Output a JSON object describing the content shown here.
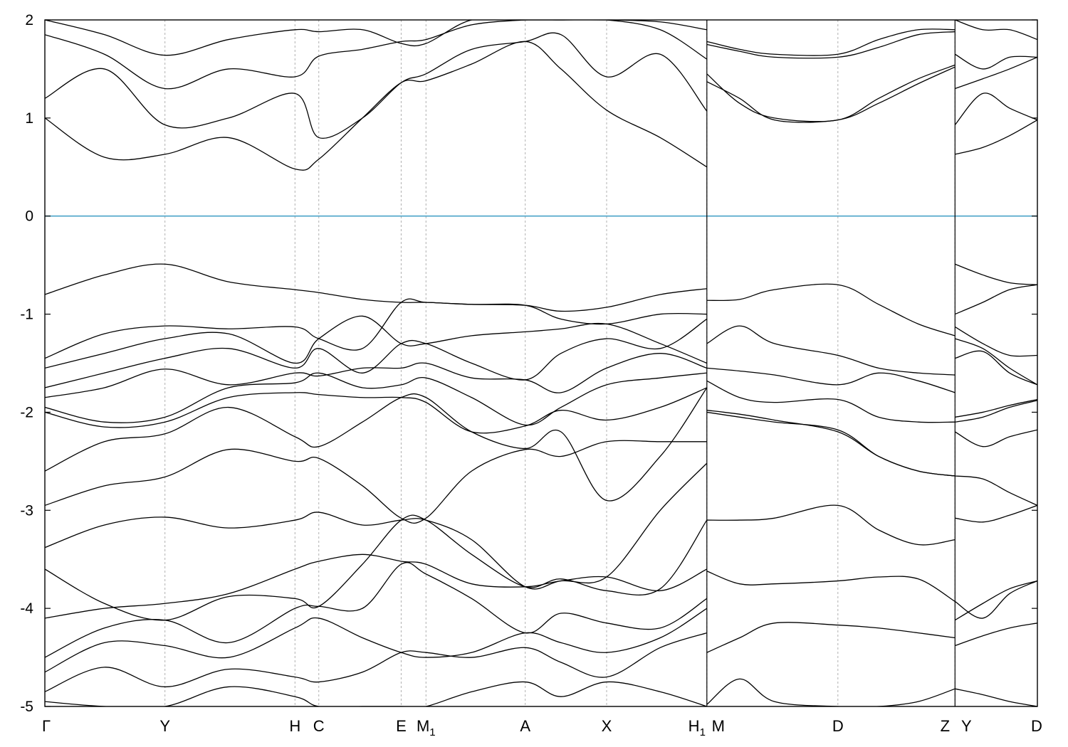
{
  "chart_data": {
    "type": "line",
    "title": "",
    "xlabel": "",
    "ylabel": "",
    "ylim": [
      -5,
      2
    ],
    "grid": "vertical dashed lines at high-symmetry points",
    "line_color": "#000000",
    "reference_line": {
      "y": 0,
      "color": "#4aa3c8"
    },
    "yticks": [
      {
        "value": 2,
        "label": "2"
      },
      {
        "value": 1,
        "label": "1"
      },
      {
        "value": 0,
        "label": "0"
      },
      {
        "value": -1,
        "label": "-1"
      },
      {
        "value": -2,
        "label": "-2"
      },
      {
        "value": -3,
        "label": "-3"
      },
      {
        "value": -4,
        "label": "-4"
      },
      {
        "value": -5,
        "label": "-5"
      }
    ],
    "kpoints": [
      {
        "id": "G",
        "label": "Γ",
        "sub": "",
        "x": 0
      },
      {
        "id": "Y",
        "label": "Y",
        "sub": "",
        "x": 1.21
      },
      {
        "id": "H",
        "label": "H",
        "sub": "",
        "x": 2.52
      },
      {
        "id": "C",
        "label": "C",
        "sub": "",
        "x": 2.76
      },
      {
        "id": "E",
        "label": "E",
        "sub": "",
        "x": 3.59
      },
      {
        "id": "M1",
        "label": "M",
        "sub": "1",
        "x": 3.84
      },
      {
        "id": "A",
        "label": "A",
        "sub": "",
        "x": 4.84
      },
      {
        "id": "X",
        "label": "X",
        "sub": "",
        "x": 5.66
      },
      {
        "id": "H1",
        "label": "H",
        "sub": "1",
        "x": 6.67
      },
      {
        "id": "D",
        "label": "D",
        "sub": "",
        "x": 7.99
      },
      {
        "id": "Z",
        "label": "Z",
        "sub": "",
        "x": 9.17
      },
      {
        "id": "D2",
        "label": "D",
        "sub": "",
        "x": 10.0
      }
    ],
    "breaks": [
      {
        "x": 6.67,
        "left": "H1",
        "right": "M"
      },
      {
        "x": 9.17,
        "left": "Z",
        "right": "Y"
      }
    ],
    "segments": [
      {
        "name": "Γ-Y-H-C-E-M1-A-X-H1",
        "x": [
          0,
          0.6,
          1.21,
          1.85,
          2.52,
          2.76,
          3.2,
          3.59,
          3.84,
          4.3,
          4.84,
          5.2,
          5.66,
          6.2,
          6.67
        ],
        "bands": [
          [
            -4.95,
            -5.0,
            -5.0,
            -4.8,
            -4.9,
            -5.0,
            -5.0,
            -5.0,
            -5.0,
            -4.85,
            -4.75,
            -4.9,
            -4.75,
            -4.85,
            -5.0
          ],
          [
            -4.85,
            -4.6,
            -4.8,
            -4.62,
            -4.7,
            -4.75,
            -4.65,
            -4.45,
            -4.45,
            -4.5,
            -4.4,
            -4.55,
            -4.7,
            -4.4,
            -4.25
          ],
          [
            -4.65,
            -4.35,
            -4.38,
            -4.5,
            -4.2,
            -4.1,
            -4.3,
            -4.45,
            -4.5,
            -4.45,
            -4.25,
            -4.35,
            -4.45,
            -4.3,
            -4.0
          ],
          [
            -4.5,
            -4.2,
            -4.12,
            -4.35,
            -4.0,
            -3.98,
            -4.0,
            -3.55,
            -3.65,
            -3.9,
            -4.25,
            -4.05,
            -4.15,
            -4.2,
            -3.9
          ],
          [
            -4.1,
            -4.0,
            -3.95,
            -3.85,
            -3.6,
            -3.52,
            -3.45,
            -3.52,
            -3.55,
            -3.75,
            -3.78,
            -3.72,
            -3.68,
            -3.82,
            -3.6
          ],
          [
            -3.6,
            -3.95,
            -4.12,
            -3.88,
            -3.9,
            -3.98,
            -3.55,
            -3.1,
            -3.1,
            -3.45,
            -3.78,
            -3.7,
            -3.82,
            -3.8,
            -3.1
          ],
          [
            -3.38,
            -3.15,
            -3.07,
            -3.18,
            -3.1,
            -3.02,
            -3.15,
            -3.1,
            -3.1,
            -3.3,
            -3.78,
            -3.72,
            -3.68,
            -3.0,
            -2.52
          ],
          [
            -2.95,
            -2.75,
            -2.66,
            -2.38,
            -2.5,
            -2.47,
            -2.75,
            -3.08,
            -3.08,
            -2.6,
            -2.38,
            -2.45,
            -2.3,
            -2.3,
            -2.3
          ],
          [
            -2.6,
            -2.3,
            -2.22,
            -1.95,
            -2.25,
            -2.35,
            -2.1,
            -1.85,
            -1.85,
            -2.2,
            -2.37,
            -2.2,
            -2.9,
            -2.45,
            -1.75
          ],
          [
            -2.0,
            -2.15,
            -2.1,
            -1.85,
            -1.8,
            -1.82,
            -1.85,
            -1.85,
            -1.9,
            -2.2,
            -2.14,
            -1.98,
            -2.08,
            -1.95,
            -1.75
          ],
          [
            -1.95,
            -2.1,
            -2.05,
            -1.75,
            -1.7,
            -1.6,
            -1.75,
            -1.72,
            -1.65,
            -1.85,
            -2.13,
            -1.95,
            -1.72,
            -1.65,
            -1.6
          ],
          [
            -1.85,
            -1.75,
            -1.56,
            -1.72,
            -1.6,
            -1.63,
            -1.55,
            -1.55,
            -1.5,
            -1.65,
            -1.67,
            -1.8,
            -1.55,
            -1.4,
            -1.55
          ],
          [
            -1.75,
            -1.6,
            -1.45,
            -1.35,
            -1.55,
            -1.35,
            -1.6,
            -1.3,
            -1.3,
            -1.5,
            -1.67,
            -1.4,
            -1.25,
            -1.35,
            -1.05
          ],
          [
            -1.55,
            -1.4,
            -1.25,
            -1.2,
            -1.5,
            -1.25,
            -1.02,
            -1.3,
            -1.3,
            -1.22,
            -1.18,
            -1.15,
            -1.1,
            -1.3,
            -1.5
          ],
          [
            -1.45,
            -1.2,
            -1.12,
            -1.15,
            -1.13,
            -1.25,
            -1.35,
            -0.88,
            -0.88,
            -0.9,
            -0.91,
            -1.05,
            -1.1,
            -1.0,
            -1.0
          ],
          [
            -0.8,
            -0.6,
            -0.49,
            -0.67,
            -0.75,
            -0.78,
            -0.85,
            -0.88,
            -0.88,
            -0.9,
            -0.91,
            -0.97,
            -0.93,
            -0.8,
            -0.74
          ],
          [
            1.0,
            0.6,
            0.63,
            0.8,
            0.48,
            0.58,
            1.0,
            1.36,
            1.38,
            1.55,
            1.78,
            1.5,
            1.08,
            0.8,
            0.5
          ],
          [
            1.2,
            1.5,
            0.93,
            1.0,
            1.25,
            0.8,
            1.0,
            1.36,
            1.45,
            1.7,
            1.78,
            1.85,
            1.42,
            1.65,
            1.07
          ],
          [
            1.85,
            1.65,
            1.3,
            1.5,
            1.42,
            1.63,
            1.7,
            1.78,
            1.8,
            1.95,
            2.0,
            2.0,
            2.0,
            1.9,
            1.6
          ],
          [
            2.0,
            1.85,
            1.64,
            1.8,
            1.9,
            1.88,
            1.9,
            1.76,
            1.76,
            2.0,
            2.0,
            2.0,
            2.0,
            1.98,
            1.9
          ]
        ]
      },
      {
        "name": "M-D-Z",
        "x": [
          6.67,
          7.0,
          7.35,
          7.99,
          8.4,
          8.8,
          9.17
        ],
        "bands": [
          [
            -4.98,
            -4.72,
            -4.95,
            -5.0,
            -5.0,
            -4.95,
            -4.82
          ],
          [
            -4.45,
            -4.3,
            -4.15,
            -4.17,
            -4.2,
            -4.25,
            -4.3
          ],
          [
            -3.62,
            -3.75,
            -3.75,
            -3.72,
            -3.68,
            -3.7,
            -3.93
          ],
          [
            -3.1,
            -3.1,
            -3.08,
            -2.95,
            -3.2,
            -3.35,
            -3.3
          ],
          [
            -2.0,
            -2.05,
            -2.1,
            -2.18,
            -2.45,
            -2.6,
            -2.65
          ],
          [
            -1.98,
            -2.02,
            -2.08,
            -2.2,
            -2.45,
            -2.6,
            -2.65
          ],
          [
            -1.68,
            -1.85,
            -1.9,
            -1.87,
            -2.05,
            -2.1,
            -2.1
          ],
          [
            -1.55,
            -1.58,
            -1.62,
            -1.72,
            -1.6,
            -1.68,
            -1.8
          ],
          [
            -1.3,
            -1.12,
            -1.3,
            -1.42,
            -1.55,
            -1.6,
            -1.62
          ],
          [
            -0.86,
            -0.85,
            -0.75,
            -0.7,
            -0.9,
            -1.1,
            -1.22
          ],
          [
            1.37,
            1.2,
            0.98,
            0.98,
            1.15,
            1.35,
            1.52
          ],
          [
            1.45,
            1.15,
            1.0,
            0.98,
            1.2,
            1.4,
            1.54
          ],
          [
            1.75,
            1.68,
            1.62,
            1.62,
            1.72,
            1.85,
            1.88
          ],
          [
            1.78,
            1.7,
            1.65,
            1.65,
            1.8,
            1.9,
            1.9
          ]
        ]
      },
      {
        "name": "Y-D",
        "x": [
          9.17,
          9.45,
          9.72,
          10.0
        ],
        "bands": [
          [
            -4.82,
            -4.88,
            -4.95,
            -5.0
          ],
          [
            -4.38,
            -4.28,
            -4.2,
            -4.15
          ],
          [
            -4.12,
            -3.95,
            -3.8,
            -3.72
          ],
          [
            -3.93,
            -4.1,
            -3.85,
            -3.72
          ],
          [
            -3.08,
            -3.12,
            -3.05,
            -2.95
          ],
          [
            -2.65,
            -2.68,
            -2.82,
            -2.95
          ],
          [
            -2.2,
            -2.35,
            -2.25,
            -2.18
          ],
          [
            -2.1,
            -2.05,
            -1.95,
            -1.88
          ],
          [
            -2.05,
            -2.0,
            -1.93,
            -1.87
          ],
          [
            -1.45,
            -1.38,
            -1.6,
            -1.72
          ],
          [
            -1.25,
            -1.35,
            -1.55,
            -1.72
          ],
          [
            -1.13,
            -1.3,
            -1.42,
            -1.42
          ],
          [
            -1.0,
            -0.88,
            -0.75,
            -0.7
          ],
          [
            -0.49,
            -0.6,
            -0.68,
            -0.7
          ],
          [
            0.63,
            0.7,
            0.82,
            0.98
          ],
          [
            0.93,
            1.25,
            1.1,
            0.98
          ],
          [
            1.3,
            1.4,
            1.5,
            1.62
          ],
          [
            1.65,
            1.5,
            1.62,
            1.62
          ],
          [
            2.0,
            1.9,
            1.9,
            1.8
          ]
        ]
      }
    ]
  }
}
